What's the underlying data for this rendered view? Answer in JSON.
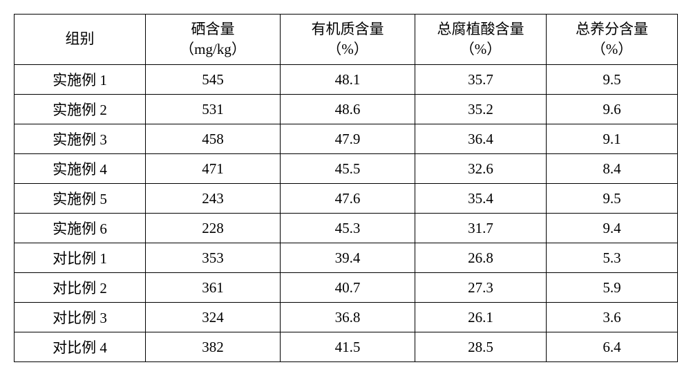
{
  "table": {
    "columns": [
      {
        "key": "group",
        "line1": "组别",
        "line2": ""
      },
      {
        "key": "se",
        "line1": "硒含量",
        "line2": "（mg/kg）"
      },
      {
        "key": "organic",
        "line1": "有机质含量",
        "line2": "（%）"
      },
      {
        "key": "humic",
        "line1": "总腐植酸含量",
        "line2": "（%）"
      },
      {
        "key": "nutr",
        "line1": "总养分含量",
        "line2": "（%）"
      }
    ],
    "rows": [
      {
        "group": "实施例 1",
        "se": "545",
        "organic": "48.1",
        "humic": "35.7",
        "nutr": "9.5"
      },
      {
        "group": "实施例 2",
        "se": "531",
        "organic": "48.6",
        "humic": "35.2",
        "nutr": "9.6"
      },
      {
        "group": "实施例 3",
        "se": "458",
        "organic": "47.9",
        "humic": "36.4",
        "nutr": "9.1"
      },
      {
        "group": "实施例 4",
        "se": "471",
        "organic": "45.5",
        "humic": "32.6",
        "nutr": "8.4"
      },
      {
        "group": "实施例 5",
        "se": "243",
        "organic": "47.6",
        "humic": "35.4",
        "nutr": "9.5"
      },
      {
        "group": "实施例 6",
        "se": "228",
        "organic": "45.3",
        "humic": "31.7",
        "nutr": "9.4"
      },
      {
        "group": "对比例 1",
        "se": "353",
        "organic": "39.4",
        "humic": "26.8",
        "nutr": "5.3"
      },
      {
        "group": "对比例 2",
        "se": "361",
        "organic": "40.7",
        "humic": "27.3",
        "nutr": "5.9"
      },
      {
        "group": "对比例 3",
        "se": "324",
        "organic": "36.8",
        "humic": "26.1",
        "nutr": "3.6"
      },
      {
        "group": "对比例 4",
        "se": "382",
        "organic": "41.5",
        "humic": "28.5",
        "nutr": "6.4"
      }
    ]
  }
}
